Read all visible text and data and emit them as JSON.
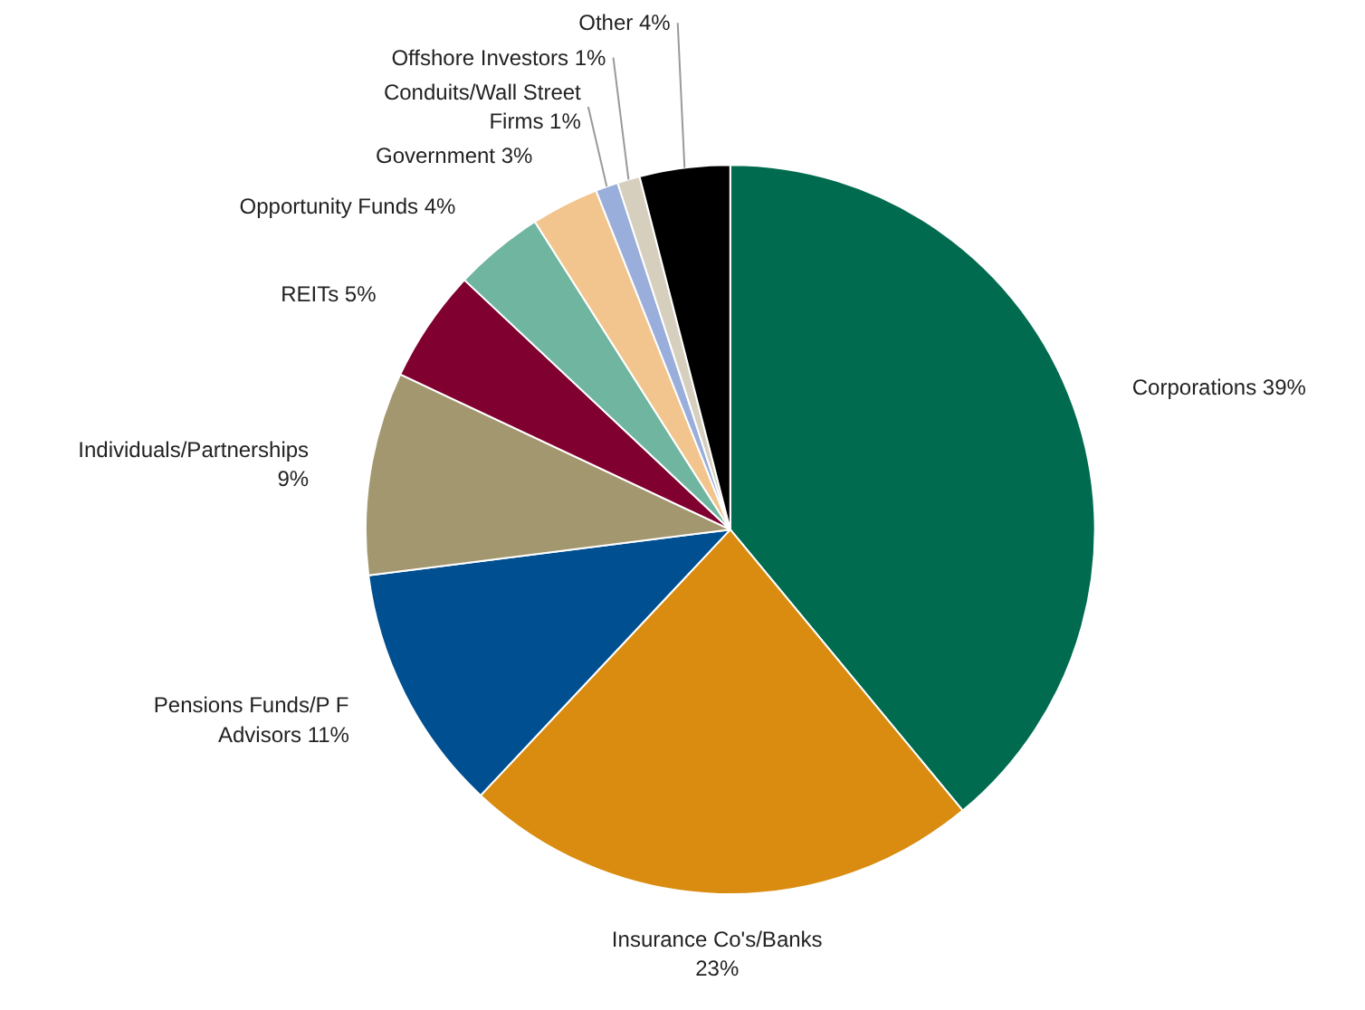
{
  "chart_data": {
    "type": "pie",
    "categories": [
      "Corporations",
      "Insurance Co's/Banks",
      "Pensions Funds/P F Advisors",
      "Individuals/Partnerships",
      "REITs",
      "Opportunity Funds",
      "Government",
      "Conduits/Wall Street Firms",
      "Offshore Investors",
      "Other"
    ],
    "values": [
      39,
      23,
      11,
      9,
      5,
      4,
      3,
      1,
      1,
      4
    ],
    "value_labels": [
      "39%",
      "23%",
      "11%",
      "9%",
      "5%",
      "4%",
      "3%",
      "1%",
      "1%",
      "4%"
    ],
    "colors": [
      "#006b4f",
      "#d98c10",
      "#004f91",
      "#a39770",
      "#800030",
      "#6fb5a0",
      "#f2c58e",
      "#9aaedb",
      "#d6cfbd",
      "#000000"
    ]
  }
}
